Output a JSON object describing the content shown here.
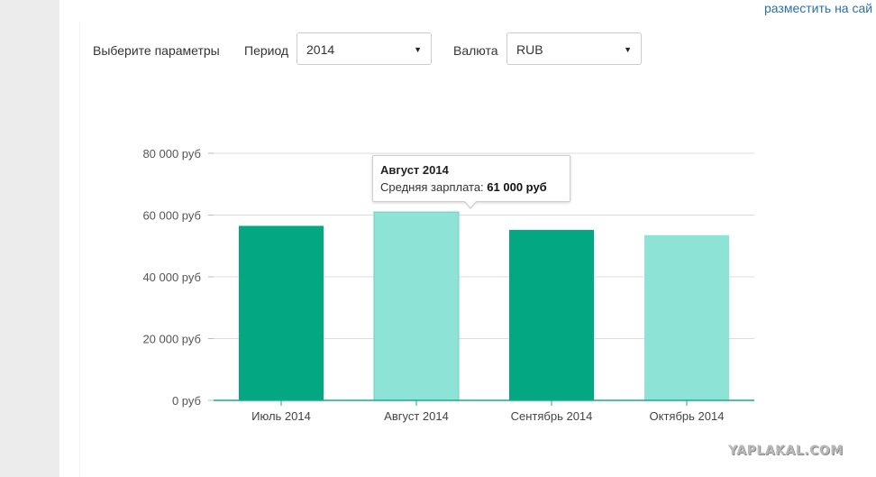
{
  "header": {
    "link_text": "разместить на сай"
  },
  "params": {
    "label": "Выберите параметры",
    "period_label": "Период",
    "period_value": "2014",
    "currency_label": "Валюта",
    "currency_value": "RUB",
    "caret": "▼"
  },
  "tooltip": {
    "title": "Август 2014",
    "label": "Средняя зарплата:",
    "value": "61 000 руб"
  },
  "watermark": "YAPLAKAL.COM",
  "colors": {
    "bar_dark": "#03a883",
    "bar_light": "#8de3d6",
    "axis": "#1aaa8a",
    "grid": "#dcdcdc"
  },
  "chart_data": {
    "type": "bar",
    "categories": [
      "Июль 2014",
      "Август 2014",
      "Сентябрь 2014",
      "Октябрь 2014"
    ],
    "values": [
      56500,
      61000,
      55200,
      53500
    ],
    "bar_colors": [
      "#03a883",
      "#8de3d6",
      "#03a883",
      "#8de3d6"
    ],
    "highlighted_index": 1,
    "ylim": [
      0,
      80000
    ],
    "yticks": [
      0,
      20000,
      40000,
      60000,
      80000
    ],
    "ytick_labels": [
      "0 руб",
      "20 000 руб",
      "40 000 руб",
      "60 000 руб",
      "80 000 руб"
    ],
    "grid": true,
    "title": "",
    "xlabel": "",
    "ylabel": ""
  }
}
